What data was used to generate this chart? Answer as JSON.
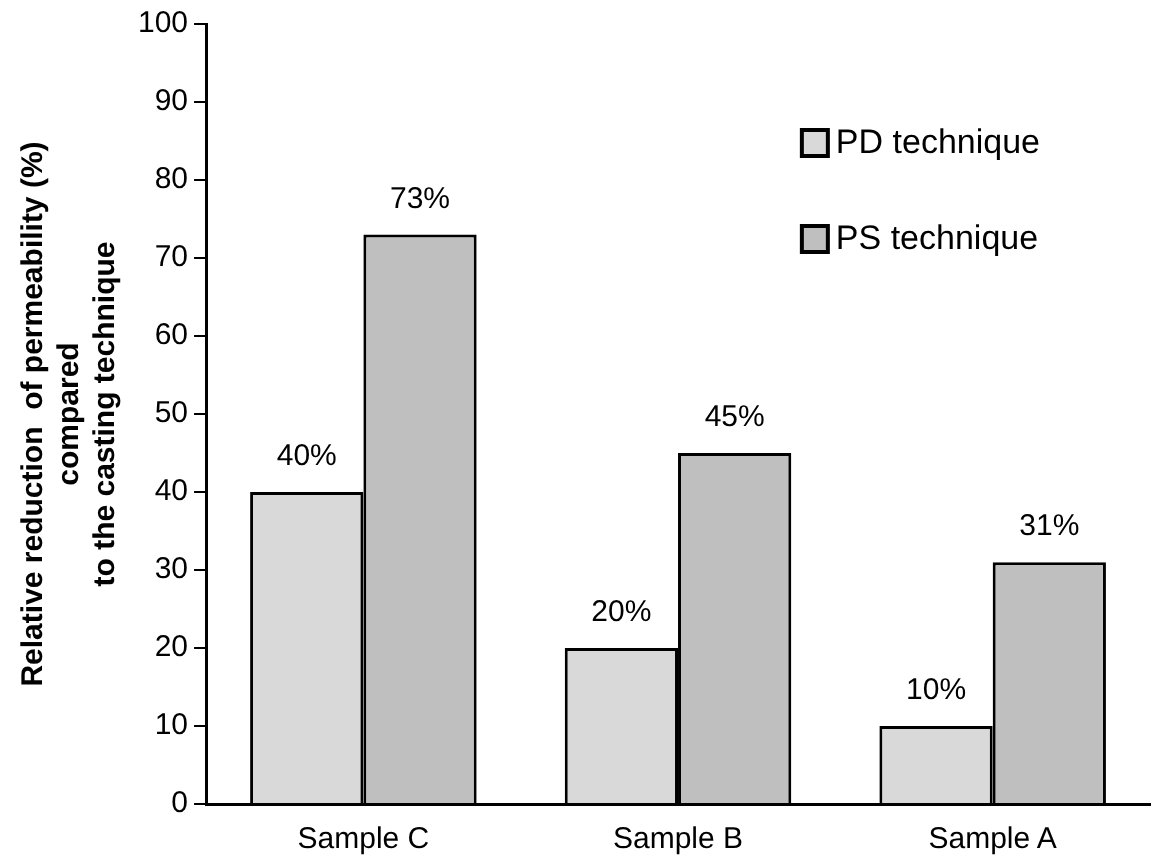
{
  "chart_data": {
    "type": "bar",
    "ylabel": "Relative reduction  of permeability (%)\ncompared\nto the casting technique",
    "categories": [
      "Sample C",
      "Sample B",
      "Sample A"
    ],
    "series": [
      {
        "name": "PD technique",
        "color": "#d9d9d9",
        "values": [
          40,
          20,
          10
        ],
        "value_labels": [
          "40%",
          "20%",
          "10%"
        ]
      },
      {
        "name": "PS technique",
        "color": "#bfbfbf",
        "values": [
          73,
          45,
          31
        ],
        "value_labels": [
          "73%",
          "45%",
          "31%"
        ]
      }
    ],
    "ylim": [
      0,
      100
    ],
    "yticks": [
      0,
      10,
      20,
      30,
      40,
      50,
      60,
      70,
      80,
      90,
      100
    ],
    "grid": false,
    "legend": "top right"
  }
}
